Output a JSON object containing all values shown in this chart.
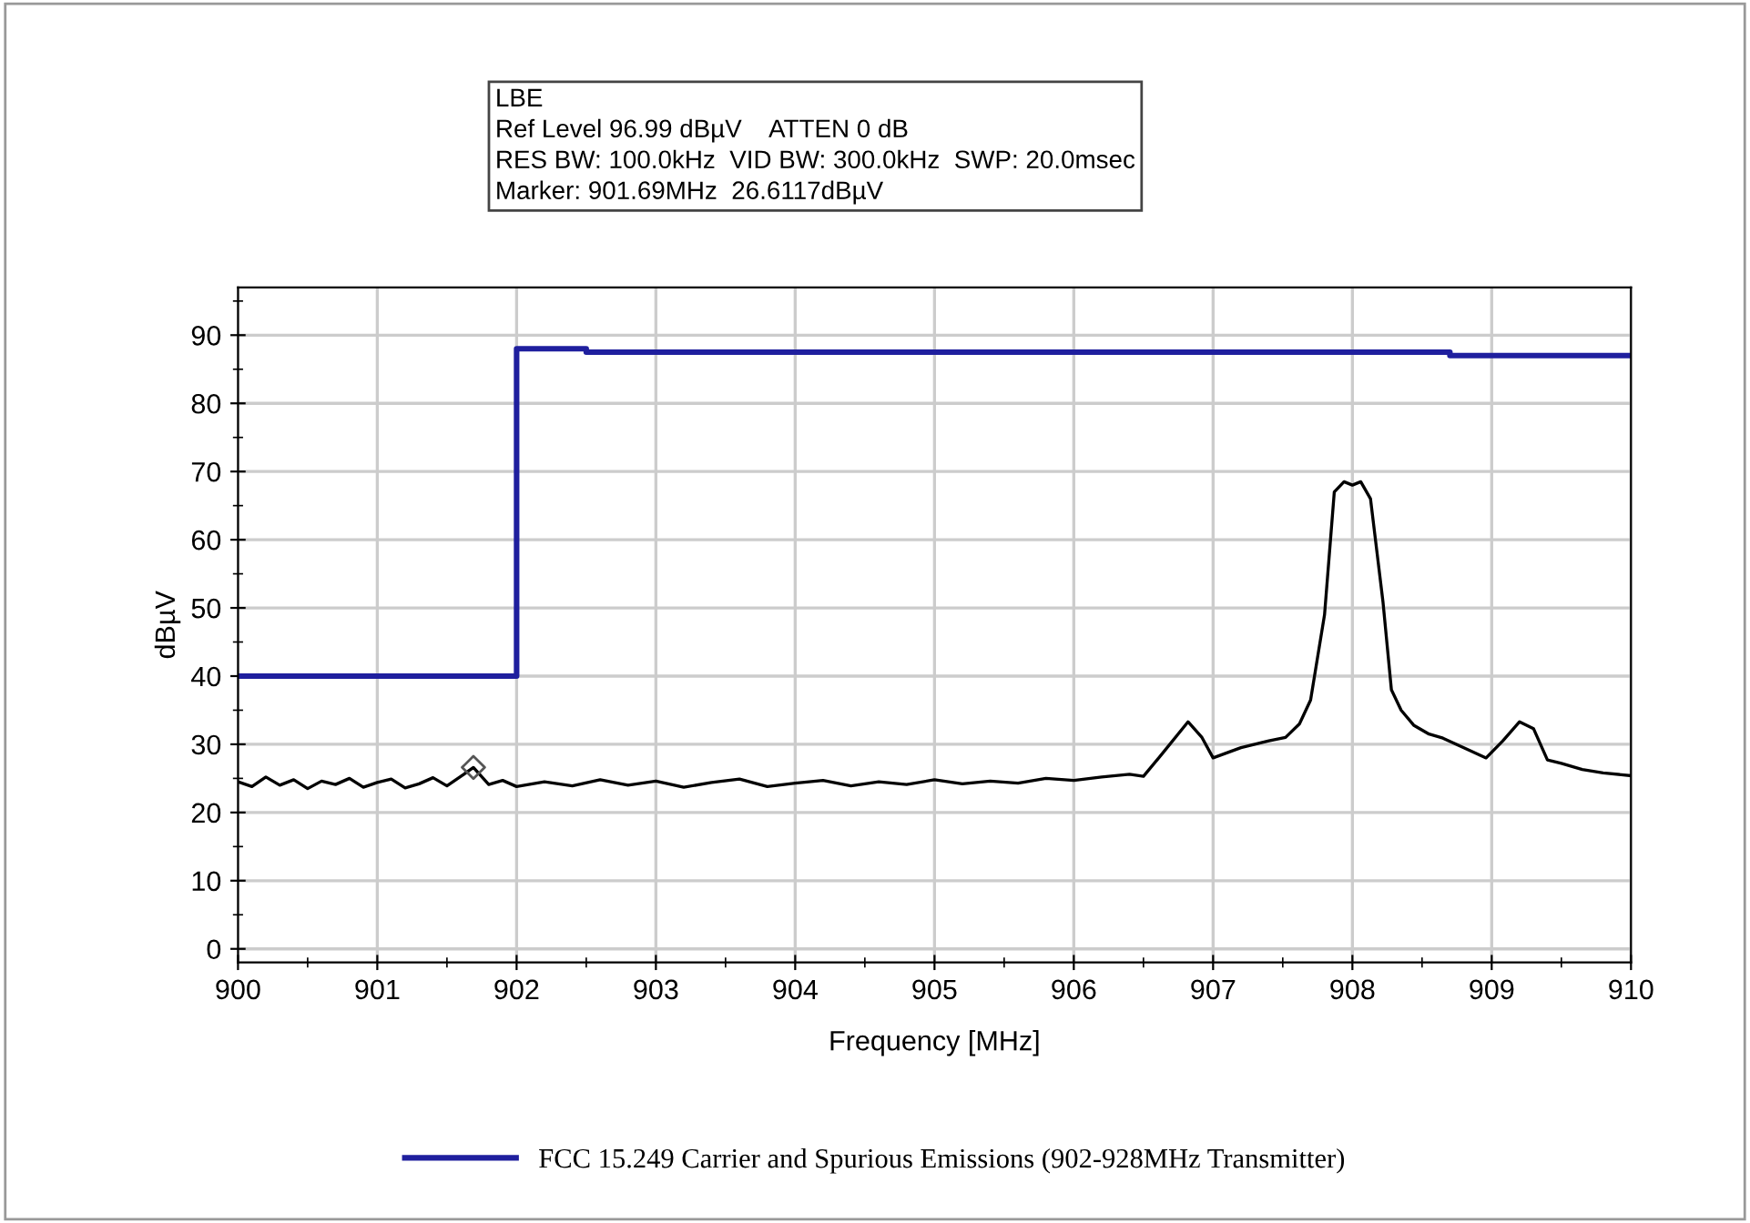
{
  "chart_data": {
    "type": "line",
    "xlabel": "Frequency [MHz]",
    "ylabel": "dBµV",
    "annotations": [
      "LBE",
      "Ref Level 96.99 dBµV    ATTEN 0 dB",
      "RES BW: 100.0kHz  VID BW: 300.0kHz  SWP: 20.0msec",
      "Marker: 901.69MHz  26.6117dBµV"
    ],
    "xlim": [
      900,
      910
    ],
    "ylim": [
      -2,
      97
    ],
    "xticks": [
      900,
      {
        "value": 900.5,
        "label": null
      },
      901,
      {
        "value": 901.5,
        "label": null
      },
      902,
      {
        "value": 902.5,
        "label": null
      },
      903,
      {
        "value": 903.5,
        "label": null
      },
      904,
      {
        "value": 904.5,
        "label": null
      },
      905,
      {
        "value": 905.5,
        "label": null
      },
      906,
      {
        "value": 906.5,
        "label": null
      },
      907,
      {
        "value": 907.5,
        "label": null
      },
      908,
      {
        "value": 908.5,
        "label": null
      },
      909,
      {
        "value": 909.5,
        "label": null
      },
      910
    ],
    "yticks": [
      0,
      {
        "value": 5,
        "label": null
      },
      10,
      {
        "value": 15,
        "label": null
      },
      20,
      {
        "value": 25,
        "label": null
      },
      30,
      {
        "value": 35,
        "label": null
      },
      40,
      {
        "value": 45,
        "label": null
      },
      50,
      {
        "value": 55,
        "label": null
      },
      60,
      {
        "value": 65,
        "label": null
      },
      70,
      {
        "value": 75,
        "label": null
      },
      80,
      {
        "value": 85,
        "label": null
      },
      90,
      {
        "value": 95,
        "label": null
      }
    ],
    "grid": true,
    "legend": "bottom",
    "series": [
      {
        "name": "FCC 15.249 Carrier and Spurious Emissions (902-928MHz Transmitter)",
        "type": "step",
        "color": "#1f1f9e",
        "x": [
          900,
          902,
          902.5,
          908.7,
          910
        ],
        "values": [
          40,
          88,
          87.5,
          87,
          87
        ]
      },
      {
        "type": "scatter",
        "marker": "diamond",
        "color": "#555555",
        "x": [
          901.69
        ],
        "values": [
          26.6117
        ]
      },
      {
        "color": "#000000",
        "x": [
          900,
          900.1,
          900.2,
          900.3,
          900.4,
          900.5,
          900.6,
          900.7,
          900.8,
          900.9,
          901,
          901.1,
          901.2,
          901.3,
          901.4,
          901.5,
          901.6,
          901.69,
          901.8,
          901.9,
          902,
          902.2,
          902.4,
          902.6,
          902.8,
          903,
          903.2,
          903.4,
          903.6,
          903.8,
          904,
          904.2,
          904.4,
          904.6,
          904.8,
          905,
          905.2,
          905.4,
          905.6,
          905.8,
          906,
          906.2,
          906.4,
          906.5,
          906.65,
          906.82,
          906.92,
          907,
          907.2,
          907.4,
          907.52,
          907.62,
          907.7,
          907.8,
          907.87,
          907.94,
          908,
          908.06,
          908.13,
          908.22,
          908.28,
          908.35,
          908.44,
          908.55,
          908.65,
          908.8,
          908.96,
          909.08,
          909.2,
          909.3,
          909.4,
          909.5,
          909.65,
          909.8,
          910
        ],
        "values": [
          24.5,
          23.8,
          25.2,
          24,
          24.8,
          23.5,
          24.6,
          24.1,
          25,
          23.7,
          24.4,
          24.9,
          23.6,
          24.2,
          25.1,
          23.9,
          25.3,
          26.6,
          24.1,
          24.7,
          23.8,
          24.5,
          23.9,
          24.8,
          24,
          24.6,
          23.7,
          24.4,
          24.9,
          23.8,
          24.3,
          24.7,
          23.9,
          24.5,
          24.1,
          24.8,
          24.2,
          24.6,
          24.3,
          25,
          24.7,
          25.2,
          25.6,
          25.3,
          29,
          33.3,
          31,
          28,
          29.5,
          30.5,
          31,
          33,
          36.5,
          49,
          67,
          68.5,
          68,
          68.5,
          66,
          50.8,
          38,
          35,
          32.8,
          31.5,
          30.9,
          29.5,
          28,
          30.5,
          33.3,
          32.3,
          27.7,
          27.2,
          26.3,
          25.8,
          25.4
        ]
      }
    ]
  }
}
